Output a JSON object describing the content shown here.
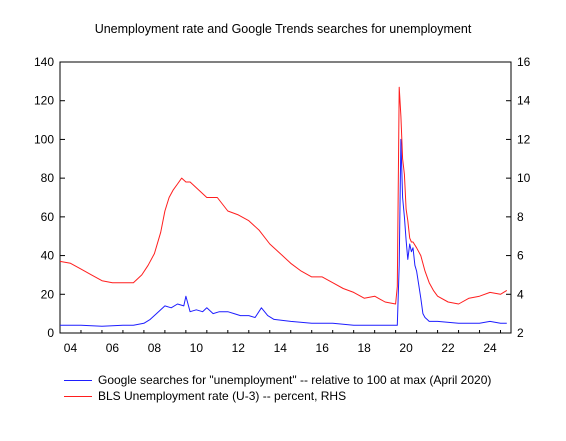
{
  "chart_data": {
    "type": "line",
    "title": "Unemployment rate and Google Trends searches for unemployment",
    "x_axis": {
      "range": [
        2004.0,
        2025.5
      ],
      "tick_labels": [
        "04",
        "06",
        "08",
        "10",
        "12",
        "14",
        "16",
        "18",
        "20",
        "22",
        "24"
      ],
      "tick_years": [
        2004,
        2006,
        2008,
        2010,
        2012,
        2014,
        2016,
        2018,
        2020,
        2022,
        2024
      ]
    },
    "y_left": {
      "range": [
        0,
        140
      ],
      "ticks": [
        0,
        20,
        40,
        60,
        80,
        100,
        120,
        140
      ]
    },
    "y_right": {
      "range": [
        2,
        16
      ],
      "ticks": [
        2,
        4,
        6,
        8,
        10,
        12,
        14,
        16
      ]
    },
    "grid": false,
    "legend_position": "bottom",
    "series": [
      {
        "name": "Google searches for \"unemployment\" -- relative to 100 at max (April 2020)",
        "axis": "left",
        "color": "#1e1eff",
        "x": [
          2004.0,
          2005.0,
          2006.0,
          2007.0,
          2007.5,
          2008.0,
          2008.3,
          2008.6,
          2009.0,
          2009.3,
          2009.6,
          2009.9,
          2010.0,
          2010.2,
          2010.5,
          2010.8,
          2011.0,
          2011.3,
          2011.6,
          2012.0,
          2012.3,
          2012.6,
          2013.0,
          2013.3,
          2013.6,
          2013.9,
          2014.2,
          2015.0,
          2016.0,
          2017.0,
          2018.0,
          2019.0,
          2019.9,
          2020.08,
          2020.17,
          2020.25,
          2020.33,
          2020.42,
          2020.5,
          2020.58,
          2020.67,
          2020.75,
          2020.83,
          2020.92,
          2021.0,
          2021.1,
          2021.2,
          2021.3,
          2021.4,
          2021.5,
          2021.6,
          2021.8,
          2022.0,
          2023.0,
          2024.0,
          2024.5,
          2025.0,
          2025.3
        ],
        "y": [
          4,
          4,
          3.5,
          4,
          4,
          5,
          7,
          10,
          14,
          13,
          15,
          14,
          19,
          11,
          12,
          11,
          13,
          10,
          11,
          11,
          10,
          9,
          9,
          8,
          13,
          9,
          7,
          6,
          5,
          5,
          4,
          4,
          4,
          4,
          35,
          100,
          70,
          60,
          48,
          38,
          46,
          42,
          44,
          35,
          32,
          25,
          18,
          10,
          8,
          7,
          6,
          6,
          6,
          5,
          5,
          6,
          5,
          5
        ]
      },
      {
        "name": "BLS Unemployment rate (U-3) -- percent, RHS",
        "axis": "right",
        "color": "#ff1e1e",
        "x": [
          2004.0,
          2004.5,
          2005.0,
          2005.5,
          2006.0,
          2006.5,
          2007.0,
          2007.5,
          2007.9,
          2008.2,
          2008.5,
          2008.8,
          2009.0,
          2009.2,
          2009.4,
          2009.6,
          2009.8,
          2010.0,
          2010.2,
          2010.5,
          2011.0,
          2011.5,
          2012.0,
          2012.5,
          2013.0,
          2013.5,
          2014.0,
          2014.5,
          2015.0,
          2015.5,
          2016.0,
          2016.5,
          2017.0,
          2017.5,
          2018.0,
          2018.5,
          2019.0,
          2019.5,
          2020.0,
          2020.08,
          2020.17,
          2020.25,
          2020.33,
          2020.42,
          2020.5,
          2020.58,
          2020.67,
          2020.75,
          2020.83,
          2021.0,
          2021.2,
          2021.4,
          2021.6,
          2021.8,
          2022.0,
          2022.5,
          2023.0,
          2023.5,
          2024.0,
          2024.5,
          2025.0,
          2025.3
        ],
        "y": [
          5.7,
          5.6,
          5.3,
          5.0,
          4.7,
          4.6,
          4.6,
          4.6,
          5.0,
          5.5,
          6.1,
          7.2,
          8.3,
          9.0,
          9.4,
          9.7,
          10.0,
          9.8,
          9.8,
          9.5,
          9.0,
          9.0,
          8.3,
          8.1,
          7.8,
          7.3,
          6.6,
          6.1,
          5.6,
          5.2,
          4.9,
          4.9,
          4.6,
          4.3,
          4.1,
          3.8,
          3.9,
          3.6,
          3.5,
          4.4,
          14.7,
          13.2,
          11.0,
          10.2,
          8.4,
          7.8,
          6.9,
          6.7,
          6.7,
          6.4,
          6.0,
          5.2,
          4.6,
          4.2,
          3.9,
          3.6,
          3.5,
          3.8,
          3.9,
          4.1,
          4.0,
          4.2
        ]
      }
    ]
  }
}
